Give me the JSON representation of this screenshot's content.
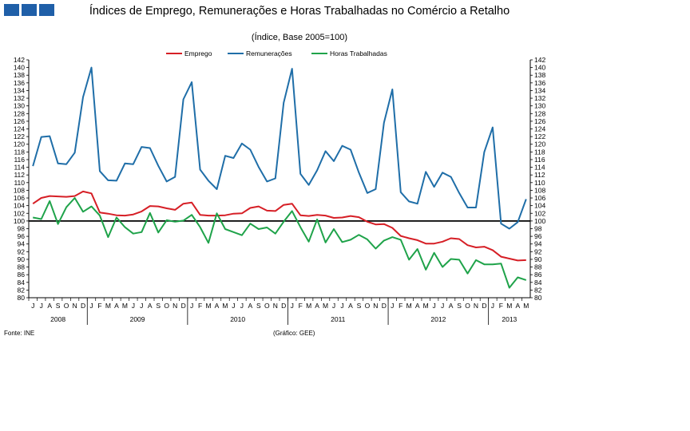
{
  "header": {
    "title": "Índices de Emprego, Remunerações e Horas Trabalhadas no Comércio a Retalho",
    "subtitle": "(Índice, Base 2005=100)"
  },
  "footer": {
    "source": "Fonte:  INE",
    "credit": "(Gráfico:  GEE)"
  },
  "chart_data": {
    "type": "line",
    "title": "Índices de Emprego, Remunerações e Horas Trabalhadas no Comércio a Retalho",
    "subtitle": "(Índice, Base 2005=100)",
    "ylim": [
      80,
      142
    ],
    "ytick_step": 2,
    "reference_line": 100,
    "legend_position": "top-center",
    "month_labels": [
      "J",
      "J",
      "A",
      "S",
      "O",
      "N",
      "D",
      "J",
      "F",
      "M",
      "A",
      "M",
      "J",
      "J",
      "A",
      "S",
      "O",
      "N",
      "D",
      "J",
      "F",
      "M",
      "A",
      "M",
      "J",
      "J",
      "A",
      "S",
      "O",
      "N",
      "D",
      "J",
      "F",
      "M",
      "A",
      "M",
      "J",
      "J",
      "A",
      "S",
      "O",
      "N",
      "D",
      "J",
      "F",
      "M",
      "A",
      "M",
      "J",
      "J",
      "A",
      "S",
      "O",
      "N",
      "D",
      "J",
      "F",
      "M",
      "A",
      "M"
    ],
    "years": [
      {
        "label": "2008",
        "months": 7
      },
      {
        "label": "2009",
        "months": 12
      },
      {
        "label": "2010",
        "months": 12
      },
      {
        "label": "2011",
        "months": 12
      },
      {
        "label": "2012",
        "months": 12
      },
      {
        "label": "2013",
        "months": 5
      }
    ],
    "series": [
      {
        "name": "Emprego",
        "color": "#d61f26",
        "values": [
          104.5,
          106.0,
          106.5,
          106.4,
          106.3,
          106.5,
          107.7,
          107.2,
          102.2,
          101.9,
          101.5,
          101.4,
          101.7,
          102.5,
          103.9,
          103.8,
          103.3,
          102.9,
          104.5,
          104.8,
          101.6,
          101.4,
          101.4,
          101.5,
          101.9,
          102.0,
          103.4,
          103.8,
          102.7,
          102.6,
          104.2,
          104.5,
          101.5,
          101.3,
          101.6,
          101.4,
          100.8,
          100.9,
          101.3,
          101.0,
          99.8,
          99.1,
          99.2,
          98.2,
          96.1,
          95.5,
          95.0,
          94.1,
          94.1,
          94.6,
          95.5,
          95.3,
          93.7,
          93.1,
          93.3,
          92.4,
          90.7,
          90.2,
          89.7,
          89.8
        ]
      },
      {
        "name": "Remunerações",
        "color": "#1f6ea8",
        "values": [
          114.3,
          121.9,
          122.1,
          115.0,
          114.8,
          117.8,
          132.3,
          140.0,
          113.0,
          110.6,
          110.5,
          115.0,
          114.8,
          119.3,
          119.0,
          114.4,
          110.3,
          111.5,
          131.7,
          136.2,
          113.4,
          110.5,
          108.3,
          117.0,
          116.4,
          120.2,
          118.6,
          114.1,
          110.3,
          111.1,
          130.8,
          139.7,
          112.3,
          109.4,
          113.2,
          118.2,
          115.6,
          119.6,
          118.6,
          112.6,
          107.3,
          108.3,
          125.6,
          134.3,
          107.5,
          105.1,
          104.5,
          112.8,
          108.9,
          112.6,
          111.5,
          107.3,
          103.5,
          103.5,
          118.0,
          124.4,
          99.3,
          98.0,
          99.7,
          105.7
        ]
      },
      {
        "name": "Horas Trabalhadas",
        "color": "#1fa34a",
        "values": [
          100.9,
          100.5,
          105.2,
          99.2,
          103.6,
          106.0,
          102.4,
          103.8,
          101.4,
          95.8,
          100.9,
          98.4,
          96.7,
          97.1,
          102.1,
          97.0,
          100.2,
          99.8,
          100.1,
          101.6,
          98.4,
          94.3,
          102.0,
          97.9,
          97.1,
          96.3,
          99.3,
          97.9,
          98.3,
          96.7,
          99.8,
          102.6,
          98.4,
          94.6,
          100.4,
          94.4,
          97.9,
          94.5,
          95.1,
          96.4,
          95.2,
          92.8,
          94.9,
          95.8,
          95.1,
          89.9,
          92.7,
          87.3,
          91.7,
          88.0,
          90.1,
          89.9,
          86.3,
          89.8,
          88.7,
          88.7,
          88.9,
          82.6,
          85.3,
          84.6
        ]
      }
    ]
  }
}
